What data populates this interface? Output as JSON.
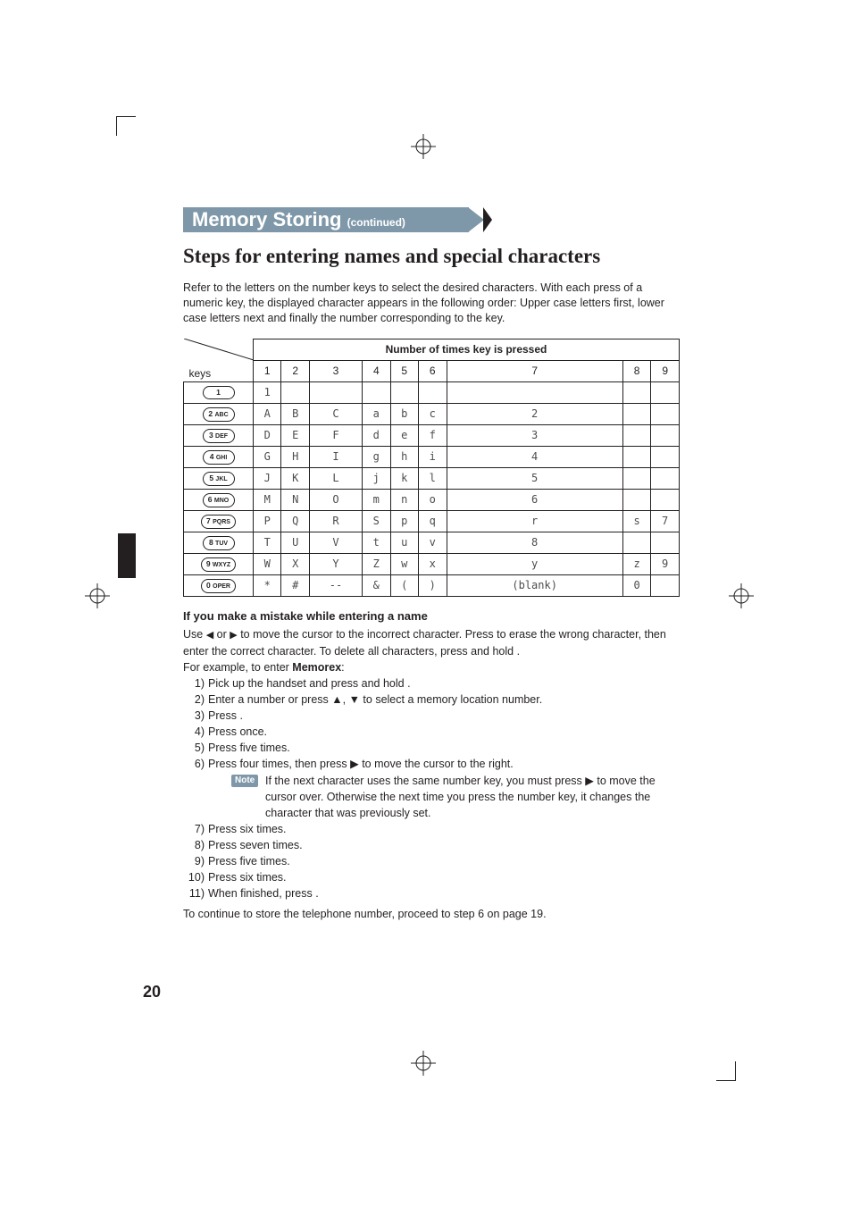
{
  "section_banner": {
    "title": "Memory Storing",
    "continued": "(continued)",
    "fill_color": "#7f98a9",
    "tail2_color": "#231f20"
  },
  "heading": "Steps for entering names and special characters",
  "intro": "Refer to the letters on the number keys to select the desired characters. With each press of a numeric key, the displayed character appears in the following order: Upper case letters first, lower case letters next and finally the number corresponding to the key.",
  "table": {
    "header_span": "Number of times key is pressed",
    "row_header": "keys",
    "columns": [
      "1",
      "2",
      "3",
      "4",
      "5",
      "6",
      "7",
      "8",
      "9"
    ],
    "key_labels": [
      {
        "big": "1",
        "sub": ""
      },
      {
        "big": "2",
        "sub": "ABC"
      },
      {
        "big": "3",
        "sub": "DEF"
      },
      {
        "big": "4",
        "sub": "GHI"
      },
      {
        "big": "5",
        "sub": "JKL"
      },
      {
        "big": "6",
        "sub": "MNO"
      },
      {
        "big": "7",
        "sub": "PQRS"
      },
      {
        "big": "8",
        "sub": "TUV"
      },
      {
        "big": "9",
        "sub": "WXYZ"
      },
      {
        "big": "0",
        "sub": "OPER"
      }
    ],
    "rows": [
      [
        "1",
        "",
        "",
        "",
        "",
        "",
        "",
        "",
        ""
      ],
      [
        "A",
        "B",
        "C",
        "a",
        "b",
        "c",
        "2",
        "",
        ""
      ],
      [
        "D",
        "E",
        "F",
        "d",
        "e",
        "f",
        "3",
        "",
        ""
      ],
      [
        "G",
        "H",
        "I",
        "g",
        "h",
        "i",
        "4",
        "",
        ""
      ],
      [
        "J",
        "K",
        "L",
        "j",
        "k",
        "l",
        "5",
        "",
        ""
      ],
      [
        "M",
        "N",
        "O",
        "m",
        "n",
        "o",
        "6",
        "",
        ""
      ],
      [
        "P",
        "Q",
        "R",
        "S",
        "p",
        "q",
        "r",
        "s",
        "7"
      ],
      [
        "T",
        "U",
        "V",
        "t",
        "u",
        "v",
        "8",
        "",
        ""
      ],
      [
        "W",
        "X",
        "Y",
        "Z",
        "w",
        "x",
        "y",
        "z",
        "9"
      ],
      [
        "*",
        "#",
        "--",
        "&",
        "(",
        ")",
        "(blank)",
        "0",
        ""
      ]
    ],
    "border_color": "#231f20",
    "lcd_text_color": "#4d4d4d"
  },
  "mistake_heading": "If you make a mistake while entering a name",
  "mistake_body_1": "Use ",
  "mistake_body_2": " or ",
  "mistake_body_3": " to move the cursor to the incorrect character. Press ",
  "mistake_body_4": " to erase the wrong character, then enter the correct character. To delete all characters, press and hold ",
  "mistake_body_5": ".",
  "example_lead": "For example, to enter ",
  "example_word": "Memorex",
  "example_colon": ":",
  "steps": [
    {
      "n": "1)",
      "t": "Pick up the handset and press and hold ",
      "tail": "."
    },
    {
      "n": "2)",
      "t": "Enter a number or press ▲, ▼ to select a memory location number."
    },
    {
      "n": "3)",
      "t": "Press ",
      "tail": "."
    },
    {
      "n": "4)",
      "t": "Press ",
      "tail": " once."
    },
    {
      "n": "5)",
      "t": "Press ",
      "tail": " five times."
    },
    {
      "n": "6)",
      "t": "Press ",
      "mid": " four times, then press ",
      "tail": " to move the cursor to the right."
    },
    {
      "n": "7)",
      "t": "Press ",
      "tail": " six times."
    },
    {
      "n": "8)",
      "t": "Press ",
      "tail": " seven times."
    },
    {
      "n": "9)",
      "t": "Press ",
      "tail": " five times."
    },
    {
      "n": "10)",
      "t": "Press ",
      "tail": " six times."
    },
    {
      "n": "11)",
      "t": "When finished, press ",
      "tail": "."
    }
  ],
  "note_label": "Note",
  "note_text_1": "If the next character uses the same number key, you must press ",
  "note_text_2": " to move the cursor over. Otherwise the next time you press the number key, it changes the character that was previously set.",
  "continue_text": "To continue to store the telephone number, proceed to step 6 on page 19.",
  "page_number": "20",
  "colors": {
    "text": "#231f20",
    "banner": "#7f98a9",
    "background": "#ffffff"
  }
}
